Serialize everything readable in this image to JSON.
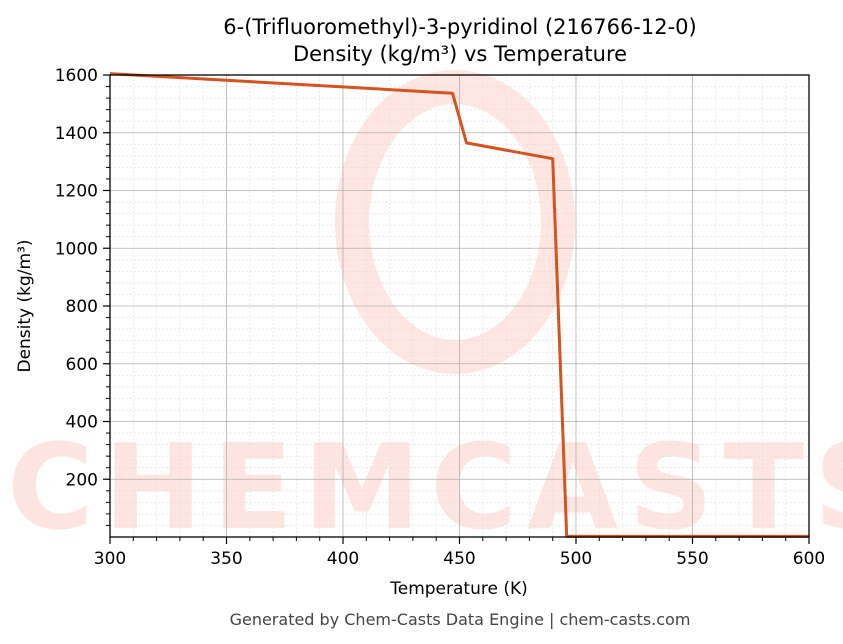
{
  "chart_data": {
    "type": "line",
    "title_lines": [
      "6-(Trifluoromethyl)-3-pyridinol (216766-12-0)",
      "Density (kg/m³) vs Temperature"
    ],
    "xlabel": "Temperature (K)",
    "ylabel": "Density (kg/m³)",
    "xlim": [
      300,
      600
    ],
    "ylim": [
      0,
      1600
    ],
    "xticks": [
      300,
      350,
      400,
      450,
      500,
      550,
      600
    ],
    "yticks": [
      200,
      400,
      600,
      800,
      1000,
      1200,
      1400,
      1600
    ],
    "grid": true,
    "series": [
      {
        "color": "#d4541f",
        "x": [
          300,
          447,
          453,
          490,
          496,
          600
        ],
        "y": [
          1605,
          1537,
          1365,
          1310,
          2,
          2
        ]
      }
    ]
  },
  "watermark": {
    "text": "CHEMCASTS",
    "color": "#ff6b55"
  },
  "footer": "Generated by Chem-Casts Data Engine | chem-casts.com"
}
